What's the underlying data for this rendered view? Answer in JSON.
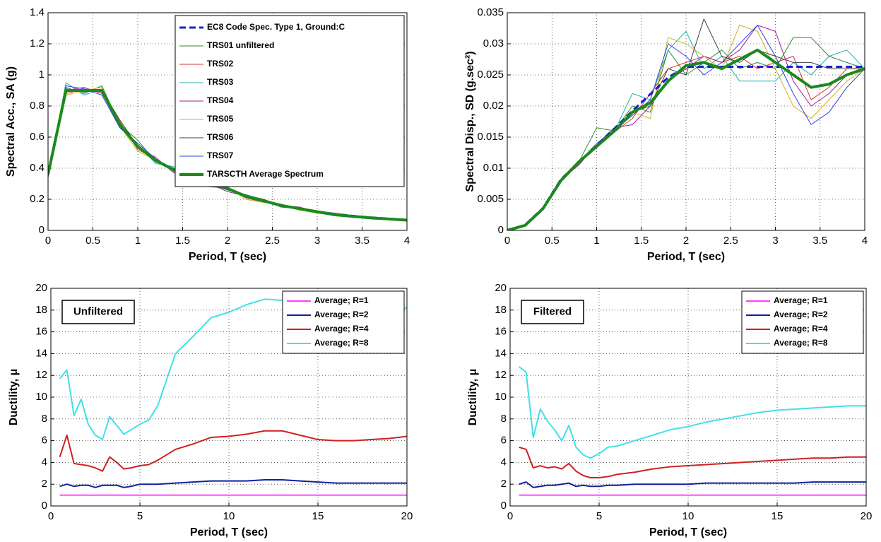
{
  "chart_data": [
    {
      "type": "line",
      "xlabel": "Period, T (sec)",
      "ylabel": "Spectral Acc., SA (g)",
      "x": [
        0,
        0.2,
        0.4,
        0.6,
        0.8,
        1,
        1.2,
        1.4,
        1.6,
        1.8,
        2,
        2.2,
        2.4,
        2.6,
        2.8,
        3,
        3.2,
        3.4,
        3.6,
        3.8,
        4
      ],
      "xlim": [
        0,
        4
      ],
      "xticks": [
        0,
        0.5,
        1,
        1.5,
        2,
        2.5,
        3,
        3.5,
        4
      ],
      "ylim": [
        0,
        1.4
      ],
      "yticks": [
        0,
        0.2,
        0.4,
        0.6,
        0.8,
        1,
        1.2,
        1.4
      ],
      "grid": true,
      "legend": "upper right",
      "series": [
        {
          "name": "EC8 Code Spec. Type 1, Ground:C",
          "color": "#1c1cd8",
          "dashed": true,
          "line_width": 3,
          "values": [
            0.36,
            0.9,
            0.9,
            0.9,
            0.675,
            0.54,
            0.45,
            0.386,
            0.3375,
            0.3,
            0.27,
            0.223,
            0.1875,
            0.16,
            0.138,
            0.12,
            0.105,
            0.093,
            0.083,
            0.075,
            0.0675
          ]
        },
        {
          "name": "TRS01 unfiltered",
          "color": "#2e8b2e",
          "line_width": 1,
          "values": [
            0.38,
            0.92,
            0.88,
            0.93,
            0.68,
            0.58,
            0.44,
            0.4,
            0.33,
            0.33,
            0.26,
            0.22,
            0.19,
            0.16,
            0.14,
            0.12,
            0.1,
            0.09,
            0.08,
            0.07,
            0.065
          ]
        },
        {
          "name": "TRS02",
          "color": "#e03030",
          "line_width": 1,
          "values": [
            0.37,
            0.88,
            0.91,
            0.89,
            0.7,
            0.52,
            0.46,
            0.38,
            0.32,
            0.29,
            0.28,
            0.21,
            0.18,
            0.17,
            0.13,
            0.12,
            0.11,
            0.09,
            0.08,
            0.075,
            0.065
          ]
        },
        {
          "name": "TRS03",
          "color": "#20b0b0",
          "line_width": 1,
          "values": [
            0.35,
            0.95,
            0.87,
            0.91,
            0.66,
            0.55,
            0.43,
            0.41,
            0.34,
            0.28,
            0.27,
            0.23,
            0.2,
            0.15,
            0.14,
            0.11,
            0.1,
            0.095,
            0.085,
            0.07,
            0.066
          ]
        },
        {
          "name": "TRS04",
          "color": "#a020a0",
          "line_width": 1,
          "values": [
            0.34,
            0.9,
            0.92,
            0.88,
            0.69,
            0.53,
            0.47,
            0.37,
            0.35,
            0.3,
            0.25,
            0.22,
            0.19,
            0.16,
            0.15,
            0.12,
            0.1,
            0.09,
            0.08,
            0.072,
            0.066
          ]
        },
        {
          "name": "TRS05",
          "color": "#d0b020",
          "line_width": 1,
          "values": [
            0.36,
            0.87,
            0.9,
            0.92,
            0.67,
            0.51,
            0.45,
            0.39,
            0.31,
            0.32,
            0.28,
            0.2,
            0.18,
            0.17,
            0.13,
            0.11,
            0.105,
            0.09,
            0.085,
            0.075,
            0.067
          ]
        },
        {
          "name": "TRS06",
          "color": "#404040",
          "line_width": 1,
          "values": [
            0.39,
            0.91,
            0.89,
            0.9,
            0.71,
            0.54,
            0.44,
            0.4,
            0.33,
            0.29,
            0.27,
            0.22,
            0.2,
            0.16,
            0.14,
            0.12,
            0.1,
            0.09,
            0.08,
            0.074,
            0.065
          ]
        },
        {
          "name": "TRS07",
          "color": "#3040e0",
          "line_width": 1,
          "values": [
            0.37,
            0.93,
            0.91,
            0.87,
            0.66,
            0.56,
            0.46,
            0.38,
            0.34,
            0.3,
            0.26,
            0.23,
            0.19,
            0.15,
            0.14,
            0.125,
            0.11,
            0.095,
            0.08,
            0.073,
            0.066
          ]
        },
        {
          "name": "TARSCTH Average Spectrum",
          "color": "#1a8a1a",
          "line_width": 4,
          "values": [
            0.36,
            0.9,
            0.9,
            0.9,
            0.68,
            0.54,
            0.45,
            0.39,
            0.33,
            0.3,
            0.27,
            0.22,
            0.19,
            0.16,
            0.14,
            0.12,
            0.1,
            0.09,
            0.08,
            0.073,
            0.066
          ]
        }
      ]
    },
    {
      "type": "line",
      "xlabel": "Period, T (sec)",
      "ylabel": "Spectral Disp., SD (g.sec²)",
      "x": [
        0,
        0.2,
        0.4,
        0.6,
        0.8,
        1,
        1.2,
        1.4,
        1.6,
        1.8,
        2,
        2.2,
        2.4,
        2.6,
        2.8,
        3,
        3.2,
        3.4,
        3.6,
        3.8,
        4
      ],
      "xlim": [
        0,
        4
      ],
      "xticks": [
        0,
        0.5,
        1,
        1.5,
        2,
        2.5,
        3,
        3.5,
        4
      ],
      "ylim": [
        0,
        0.035
      ],
      "yticks": [
        0,
        0.005,
        0.01,
        0.015,
        0.02,
        0.025,
        0.03,
        0.035
      ],
      "grid": true,
      "series": [
        {
          "color": "#2e8b2e",
          "line_width": 1,
          "values": [
            0,
            0.0009,
            0.0036,
            0.008,
            0.011,
            0.0165,
            0.016,
            0.02,
            0.019,
            0.029,
            0.025,
            0.027,
            0.029,
            0.026,
            0.027,
            0.026,
            0.031,
            0.031,
            0.028,
            0.027,
            0.026
          ]
        },
        {
          "color": "#e03030",
          "line_width": 1,
          "values": [
            0,
            0.0008,
            0.0035,
            0.0082,
            0.0108,
            0.0135,
            0.0158,
            0.018,
            0.022,
            0.026,
            0.027,
            0.028,
            0.027,
            0.028,
            0.026,
            0.027,
            0.028,
            0.021,
            0.023,
            0.026,
            0.026
          ]
        },
        {
          "color": "#20b0b0",
          "line_width": 1,
          "values": [
            0,
            0.0009,
            0.0037,
            0.0079,
            0.011,
            0.014,
            0.016,
            0.022,
            0.021,
            0.029,
            0.032,
            0.026,
            0.028,
            0.024,
            0.024,
            0.024,
            0.027,
            0.025,
            0.028,
            0.029,
            0.026
          ]
        },
        {
          "color": "#a020a0",
          "line_width": 1,
          "values": [
            0,
            0.0008,
            0.0034,
            0.0081,
            0.0105,
            0.0138,
            0.0165,
            0.017,
            0.02,
            0.024,
            0.026,
            0.028,
            0.027,
            0.029,
            0.033,
            0.032,
            0.024,
            0.02,
            0.022,
            0.025,
            0.026
          ]
        },
        {
          "color": "#d0b020",
          "line_width": 1,
          "values": [
            0,
            0.0009,
            0.0036,
            0.0083,
            0.0112,
            0.0133,
            0.0162,
            0.019,
            0.018,
            0.031,
            0.03,
            0.028,
            0.026,
            0.033,
            0.032,
            0.026,
            0.02,
            0.018,
            0.021,
            0.024,
            0.026
          ]
        },
        {
          "color": "#404040",
          "line_width": 1,
          "values": [
            0,
            0.0009,
            0.0035,
            0.008,
            0.0107,
            0.0136,
            0.0163,
            0.019,
            0.02,
            0.026,
            0.025,
            0.034,
            0.028,
            0.027,
            0.029,
            0.028,
            0.027,
            0.027,
            0.026,
            0.026,
            0.026
          ]
        },
        {
          "color": "#3040e0",
          "line_width": 1,
          "values": [
            0,
            0.0008,
            0.0036,
            0.0081,
            0.0109,
            0.0134,
            0.0161,
            0.0185,
            0.021,
            0.03,
            0.028,
            0.025,
            0.027,
            0.03,
            0.033,
            0.028,
            0.022,
            0.017,
            0.019,
            0.023,
            0.026
          ]
        },
        {
          "color": "#1c1cd8",
          "dashed": true,
          "line_width": 3,
          "values": [
            0,
            0.0009,
            0.0036,
            0.0082,
            0.0109,
            0.0137,
            0.0164,
            0.0192,
            0.0219,
            0.0246,
            0.0263,
            0.0263,
            0.0263,
            0.0263,
            0.0263,
            0.0263,
            0.0263,
            0.0263,
            0.0263,
            0.0263,
            0.0263
          ]
        },
        {
          "color": "#1a8a1a",
          "line_width": 4,
          "values": [
            0,
            0.0008,
            0.0035,
            0.008,
            0.011,
            0.0135,
            0.016,
            0.019,
            0.0205,
            0.024,
            0.0265,
            0.027,
            0.026,
            0.0275,
            0.029,
            0.027,
            0.025,
            0.023,
            0.0235,
            0.025,
            0.026
          ]
        }
      ]
    },
    {
      "type": "line",
      "xlabel": "Period, T (sec)",
      "ylabel": "Ductility, μ",
      "annotation": "Unfiltered",
      "x": [
        0.5,
        0.9,
        1.3,
        1.7,
        2.1,
        2.5,
        2.9,
        3.3,
        3.7,
        4.1,
        4.5,
        5,
        5.5,
        6,
        7,
        8,
        9,
        10,
        11,
        12,
        13,
        14,
        15,
        16,
        17,
        18,
        19,
        20
      ],
      "xlim": [
        0,
        20
      ],
      "xticks": [
        0,
        5,
        10,
        15,
        20
      ],
      "ylim": [
        0,
        20
      ],
      "yticks": [
        0,
        2,
        4,
        6,
        8,
        10,
        12,
        14,
        16,
        18,
        20
      ],
      "grid": true,
      "legend": "upper right",
      "series": [
        {
          "name": "Average; R=1",
          "color": "#ff00ff",
          "line_width": 1.5,
          "values": [
            1,
            1,
            1,
            1,
            1,
            1,
            1,
            1,
            1,
            1,
            1,
            1,
            1,
            1,
            1,
            1,
            1,
            1,
            1,
            1,
            1,
            1,
            1,
            1,
            1,
            1,
            1,
            1
          ]
        },
        {
          "name": "Average; R=2",
          "color": "#1020a0",
          "line_width": 2,
          "values": [
            1.8,
            2.0,
            1.8,
            1.9,
            1.9,
            1.7,
            1.9,
            1.9,
            1.9,
            1.7,
            1.8,
            2.0,
            2.0,
            2.0,
            2.1,
            2.2,
            2.3,
            2.3,
            2.3,
            2.4,
            2.4,
            2.3,
            2.2,
            2.1,
            2.1,
            2.1,
            2.1,
            2.1
          ]
        },
        {
          "name": "Average; R=4",
          "color": "#d02020",
          "line_width": 2,
          "values": [
            4.5,
            6.5,
            3.9,
            3.8,
            3.7,
            3.5,
            3.2,
            4.5,
            4.0,
            3.4,
            3.5,
            3.7,
            3.8,
            4.2,
            5.2,
            5.7,
            6.3,
            6.4,
            6.6,
            6.9,
            6.9,
            6.5,
            6.1,
            6.0,
            6.0,
            6.1,
            6.2,
            6.4
          ]
        },
        {
          "name": "Average; R=8",
          "color": "#40e0e8",
          "line_width": 2,
          "values": [
            11.7,
            12.5,
            8.3,
            9.8,
            7.5,
            6.5,
            6.1,
            8.2,
            7.4,
            6.6,
            7.0,
            7.5,
            7.9,
            9.2,
            14.0,
            15.6,
            17.3,
            17.8,
            18.5,
            19.0,
            18.9,
            17.8,
            18.0,
            18.0,
            18.0,
            18.0,
            18.1,
            18.2
          ]
        }
      ]
    },
    {
      "type": "line",
      "xlabel": "Period, T (sec)",
      "ylabel": "Ductility, μ",
      "annotation": "Filtered",
      "x": [
        0.5,
        0.9,
        1.3,
        1.7,
        2.1,
        2.5,
        2.9,
        3.3,
        3.7,
        4.1,
        4.5,
        5,
        5.5,
        6,
        7,
        8,
        9,
        10,
        11,
        12,
        13,
        14,
        15,
        16,
        17,
        18,
        19,
        20
      ],
      "xlim": [
        0,
        20
      ],
      "xticks": [
        0,
        5,
        10,
        15,
        20
      ],
      "ylim": [
        0,
        20
      ],
      "yticks": [
        0,
        2,
        4,
        6,
        8,
        10,
        12,
        14,
        16,
        18,
        20
      ],
      "grid": true,
      "legend": "upper right",
      "series": [
        {
          "name": "Average; R=1",
          "color": "#ff00ff",
          "line_width": 1.5,
          "values": [
            1,
            1,
            1,
            1,
            1,
            1,
            1,
            1,
            1,
            1,
            1,
            1,
            1,
            1,
            1,
            1,
            1,
            1,
            1,
            1,
            1,
            1,
            1,
            1,
            1,
            1,
            1,
            1
          ]
        },
        {
          "name": "Average; R=2",
          "color": "#1020a0",
          "line_width": 2,
          "values": [
            2.0,
            2.2,
            1.7,
            1.8,
            1.9,
            1.9,
            2.0,
            2.1,
            1.8,
            1.9,
            1.8,
            1.8,
            1.9,
            1.9,
            2.0,
            2.0,
            2.0,
            2.0,
            2.1,
            2.1,
            2.1,
            2.1,
            2.1,
            2.1,
            2.2,
            2.2,
            2.2,
            2.2
          ]
        },
        {
          "name": "Average; R=4",
          "color": "#d02020",
          "line_width": 2,
          "values": [
            5.4,
            5.2,
            3.5,
            3.7,
            3.5,
            3.6,
            3.4,
            3.9,
            3.2,
            2.8,
            2.6,
            2.6,
            2.7,
            2.9,
            3.1,
            3.4,
            3.6,
            3.7,
            3.8,
            3.9,
            4.0,
            4.1,
            4.2,
            4.3,
            4.4,
            4.4,
            4.5,
            4.5
          ]
        },
        {
          "name": "Average; R=8",
          "color": "#40e0e8",
          "line_width": 2,
          "values": [
            12.8,
            12.3,
            6.3,
            8.9,
            7.8,
            7.0,
            6.0,
            7.4,
            5.4,
            4.7,
            4.4,
            4.8,
            5.4,
            5.5,
            6.0,
            6.5,
            7.0,
            7.3,
            7.7,
            8.0,
            8.3,
            8.6,
            8.8,
            8.9,
            9.0,
            9.1,
            9.2,
            9.2
          ]
        }
      ]
    }
  ]
}
